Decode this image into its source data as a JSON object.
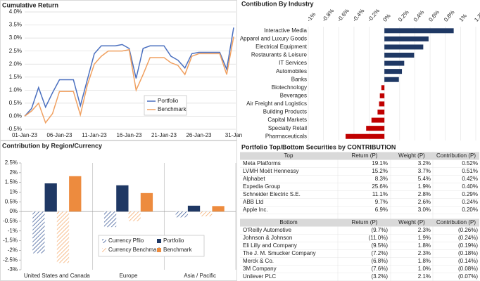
{
  "chart_data": [
    {
      "type": "line",
      "title": "Cumulative Return",
      "categories": [
        "01-Jan-23",
        null,
        null,
        null,
        null,
        "06-Jan-23",
        null,
        null,
        null,
        null,
        "11-Jan-23",
        null,
        null,
        null,
        null,
        "16-Jan-23",
        null,
        null,
        null,
        null,
        "21-Jan-23",
        null,
        null,
        null,
        null,
        "26-Jan-23",
        null,
        null,
        null,
        null,
        "31-Jan"
      ],
      "series": [
        {
          "name": "Portfolio",
          "color": "#4a6fbf",
          "values": [
            0,
            0.3,
            1.1,
            0.35,
            0.9,
            1.4,
            1.4,
            1.4,
            0.4,
            1.4,
            2.4,
            2.7,
            2.7,
            2.7,
            2.75,
            2.6,
            1.45,
            2.6,
            2.7,
            2.7,
            2.7,
            2.3,
            2.15,
            1.85,
            2.4,
            2.45,
            2.45,
            2.45,
            2.45,
            1.8,
            3.4
          ]
        },
        {
          "name": "Benchmark",
          "color": "#f0a060",
          "values": [
            0,
            0.2,
            0.5,
            -0.25,
            0.1,
            0.95,
            0.95,
            0.95,
            0.05,
            1.2,
            2.0,
            2.3,
            2.5,
            2.5,
            2.5,
            2.55,
            1.0,
            1.6,
            2.25,
            2.25,
            2.25,
            2.05,
            1.95,
            1.6,
            2.3,
            2.4,
            2.4,
            2.4,
            2.4,
            1.6,
            3.05
          ]
        }
      ],
      "ylim": [
        -0.5,
        4.0
      ],
      "yticks": [
        {
          "value": -0.5,
          "label": "-0.5%"
        },
        {
          "value": 0,
          "label": "0.0%"
        },
        {
          "value": 0.5,
          "label": "0.5%"
        },
        {
          "value": 1,
          "label": "1.0%"
        },
        {
          "value": 1.5,
          "label": "1.5%"
        },
        {
          "value": 2,
          "label": "2.0%"
        },
        {
          "value": 2.5,
          "label": "2.5%"
        },
        {
          "value": 3,
          "label": "3.0%"
        },
        {
          "value": 3.5,
          "label": "3.5%"
        },
        {
          "value": 4,
          "label": "4.0%"
        }
      ],
      "grid": true,
      "legend": "lower right"
    },
    {
      "type": "bar",
      "orientation": "horizontal",
      "title": "Contibution By Industry",
      "categories": [
        "Interactive Media",
        "Apparel and Luxury Goods",
        "Electrical Equipment",
        "Restaurants & Leisure",
        "IT Services",
        "Automobiles",
        "Banks",
        "Biotechnology",
        "Beverages",
        "Air Freight and Logistics",
        "Building Products",
        "Capital Markets",
        "Specialty Retail",
        "Pharmaceuticals"
      ],
      "values": [
        0.91,
        0.58,
        0.51,
        0.39,
        0.26,
        0.23,
        0.19,
        -0.04,
        -0.06,
        -0.07,
        -0.09,
        -0.17,
        -0.24,
        -0.51
      ],
      "color": "#1f3864",
      "negative_color": "#c00000",
      "xlim": [
        -1,
        1.2
      ],
      "xticks": [
        {
          "value": -1,
          "label": "-1%"
        },
        {
          "value": -0.8,
          "label": "-0.8%"
        },
        {
          "value": -0.6,
          "label": "-0.6%"
        },
        {
          "value": -0.4,
          "label": "-0.4%"
        },
        {
          "value": -0.2,
          "label": "-0.2%"
        },
        {
          "value": 0,
          "label": "0%"
        },
        {
          "value": 0.2,
          "label": "0.2%"
        },
        {
          "value": 0.4,
          "label": "0.4%"
        },
        {
          "value": 0.6,
          "label": "0.6%"
        },
        {
          "value": 0.8,
          "label": "0.8%"
        },
        {
          "value": 1,
          "label": "1%"
        },
        {
          "value": 1.2,
          "label": "1.2%"
        }
      ],
      "grid": true
    },
    {
      "type": "bar",
      "title": "Contribution by Region/Currency",
      "categories": [
        "United States and Canada",
        "Europe",
        "Asia / Pacific"
      ],
      "series": [
        {
          "name": "Currency Pflio",
          "color": "#2e4e8f",
          "hatch": true,
          "values": [
            -2.15,
            -0.8,
            -0.3
          ]
        },
        {
          "name": "Portfolio",
          "color": "#1f3864",
          "hatch": false,
          "values": [
            1.45,
            1.35,
            0.3
          ]
        },
        {
          "name": "Currency Benchmark",
          "color": "#f4a460",
          "hatch": true,
          "values": [
            -2.65,
            -0.5,
            -0.25
          ]
        },
        {
          "name": "Benchmark",
          "color": "#ed8b3e",
          "hatch": false,
          "values": [
            1.82,
            0.95,
            0.28
          ]
        }
      ],
      "ylim": [
        -3,
        2.5
      ],
      "yticks": [
        {
          "value": -3,
          "label": "-3%"
        },
        {
          "value": -2.5,
          "label": "-2.5%"
        },
        {
          "value": -2,
          "label": "-2%"
        },
        {
          "value": -1.5,
          "label": "-1.5%"
        },
        {
          "value": -1,
          "label": "-1%"
        },
        {
          "value": -0.5,
          "label": "-0.5%"
        },
        {
          "value": 0,
          "label": "0%"
        },
        {
          "value": 0.5,
          "label": "0.5%"
        },
        {
          "value": 1,
          "label": "1%"
        },
        {
          "value": 1.5,
          "label": "1.5%"
        },
        {
          "value": 2,
          "label": "2%"
        },
        {
          "value": 2.5,
          "label": "2.5%"
        }
      ],
      "grid": false,
      "legend": "lower center"
    }
  ],
  "table": {
    "title": "Portfolio Top/Bottom Securities by CONTRIBUTION",
    "top": {
      "header": [
        "Top",
        "Return (P)",
        "Weight (P)",
        "Contribution (P)"
      ],
      "rows": [
        [
          "Meta Platforms",
          "19.1%",
          "3.2%",
          "0.52%"
        ],
        [
          "LVMH Moët Hennessy",
          "15.2%",
          "3.7%",
          "0.51%"
        ],
        [
          "Alphabet",
          "8.3%",
          "5.4%",
          "0.42%"
        ],
        [
          "Expedia Group",
          "25.6%",
          "1.9%",
          "0.40%"
        ],
        [
          "Schneider Electric S.E.",
          "11.1%",
          "2.8%",
          "0.29%"
        ],
        [
          "ABB Ltd",
          "9.7%",
          "2.6%",
          "0.24%"
        ],
        [
          "Apple Inc.",
          "6.9%",
          "3.0%",
          "0.20%"
        ]
      ]
    },
    "bottom": {
      "header": [
        "Bottom",
        "Return (P)",
        "Weight (P)",
        "Contribution (P)"
      ],
      "rows": [
        [
          "O'Reilly Automotive",
          "(9.7%)",
          "2.3%",
          "(0.26%)"
        ],
        [
          "Johnson & Johnson",
          "(11.0%)",
          "1.9%",
          "(0.24%)"
        ],
        [
          "Eli Lilly and Company",
          "(9.5%)",
          "1.8%",
          "(0.19%)"
        ],
        [
          "The J. M. Smucker Company",
          "(7.2%)",
          "2.3%",
          "(0.18%)"
        ],
        [
          "Merck & Co.",
          "(6.8%)",
          "1.8%",
          "(0.14%)"
        ],
        [
          "3M Company",
          "(7.6%)",
          "1.0%",
          "(0.08%)"
        ],
        [
          "Unilever PLC",
          "(3.2%)",
          "2.1%",
          "(0.07%)"
        ]
      ]
    }
  }
}
